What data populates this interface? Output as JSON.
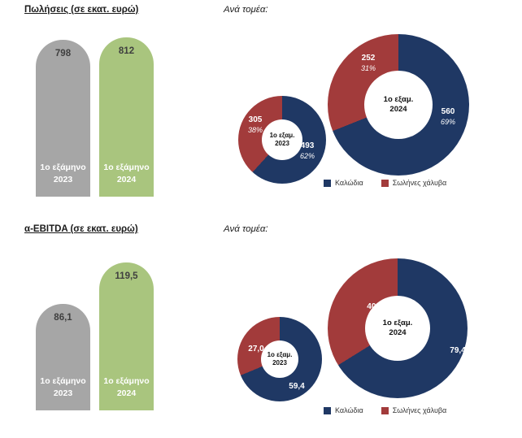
{
  "colors": {
    "blue": "#1F3864",
    "red": "#A23B3B",
    "gray": "#A6A6A6",
    "green": "#A9C57E"
  },
  "chart_data": [
    {
      "type": "bar",
      "title": "Πωλήσεις (σε εκατ. ευρώ)",
      "categories": [
        "1ο εξάμηνο 2023",
        "1ο εξάμηνο 2024"
      ],
      "category_lines": [
        [
          "1ο εξάμηνο",
          "2023"
        ],
        [
          "1ο εξάμηνο",
          "2024"
        ]
      ],
      "values": [
        798,
        812
      ],
      "value_labels": [
        "798",
        "812"
      ],
      "bar_colors": [
        "gray",
        "green"
      ],
      "ylim": [
        0,
        812
      ]
    },
    {
      "type": "pie",
      "title": "Ανά τομέα:",
      "group": "Πωλήσεις",
      "legend": [
        "Καλώδια",
        "Σωλήνες χάλυβα"
      ],
      "legend_position": "bottom-right",
      "donuts": [
        {
          "center": [
            "1ο εξαμ.",
            "2023"
          ],
          "slices": [
            {
              "name": "Καλώδια",
              "value": 493,
              "label": "493",
              "pct": "62%"
            },
            {
              "name": "Σωλήνες χάλυβα",
              "value": 305,
              "label": "305",
              "pct": "38%"
            }
          ]
        },
        {
          "center": [
            "1ο εξαμ.",
            "2024"
          ],
          "slices": [
            {
              "name": "Καλώδια",
              "value": 560,
              "label": "560",
              "pct": "69%"
            },
            {
              "name": "Σωλήνες χάλυβα",
              "value": 252,
              "label": "252",
              "pct": "31%"
            }
          ]
        }
      ]
    },
    {
      "type": "bar",
      "title": "α-EBITDA (σε εκατ. ευρώ)",
      "categories": [
        "1ο εξάμηνο 2023",
        "1ο εξάμηνο 2024"
      ],
      "category_lines": [
        [
          "1ο εξάμηνο",
          "2023"
        ],
        [
          "1ο εξάμηνο",
          "2024"
        ]
      ],
      "values": [
        86.1,
        119.5
      ],
      "value_labels": [
        "86,1",
        "119,5"
      ],
      "bar_colors": [
        "gray",
        "green"
      ],
      "ylim": [
        0,
        119.5
      ]
    },
    {
      "type": "pie",
      "title": "Ανά τομέα:",
      "group": "α-EBITDA",
      "legend": [
        "Καλώδια",
        "Σωλήνες χάλυβα"
      ],
      "legend_position": "bottom-right",
      "donuts": [
        {
          "center": [
            "1ο εξαμ.",
            "2023"
          ],
          "slices": [
            {
              "name": "Καλώδια",
              "value": 59.4,
              "label": "59,4"
            },
            {
              "name": "Σωλήνες χάλυβα",
              "value": 27.0,
              "label": "27,0"
            }
          ]
        },
        {
          "center": [
            "1ο εξαμ.",
            "2024"
          ],
          "slices": [
            {
              "name": "Καλώδια",
              "value": 79.4,
              "label": "79,4"
            },
            {
              "name": "Σωλήνες χάλυβα",
              "value": 40.6,
              "label": "40,6"
            }
          ]
        }
      ]
    }
  ]
}
